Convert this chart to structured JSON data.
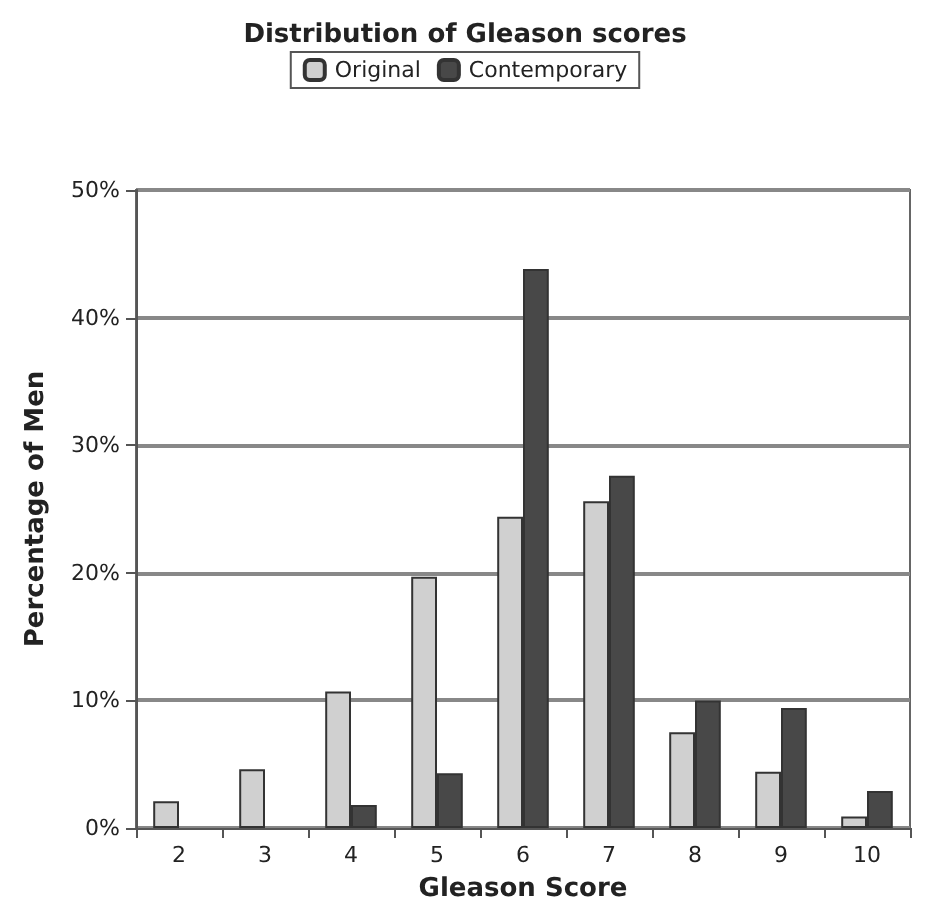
{
  "chart_data": {
    "type": "bar",
    "title": "Distribution of Gleason scores",
    "xlabel": "Gleason Score",
    "ylabel": "Percentage of Men",
    "categories": [
      "2",
      "3",
      "4",
      "5",
      "6",
      "7",
      "8",
      "9",
      "10"
    ],
    "series": [
      {
        "name": "Original",
        "color": "#d0d0d0",
        "values": [
          2.1,
          4.6,
          10.7,
          19.7,
          24.4,
          25.6,
          7.5,
          4.4,
          0.9
        ]
      },
      {
        "name": "Contemporary",
        "color": "#484848",
        "values": [
          null,
          null,
          1.8,
          4.3,
          43.8,
          27.6,
          10,
          9.4,
          2.9
        ]
      }
    ],
    "ylim": [
      0,
      50
    ],
    "yticks": [
      {
        "value": 0,
        "label": "0%"
      },
      {
        "value": 10,
        "label": "10%"
      },
      {
        "value": 20,
        "label": "20%"
      },
      {
        "value": 30,
        "label": "30%"
      },
      {
        "value": 40,
        "label": "40%"
      },
      {
        "value": 50,
        "label": "50%"
      }
    ],
    "grid": "y",
    "legend": "top"
  }
}
